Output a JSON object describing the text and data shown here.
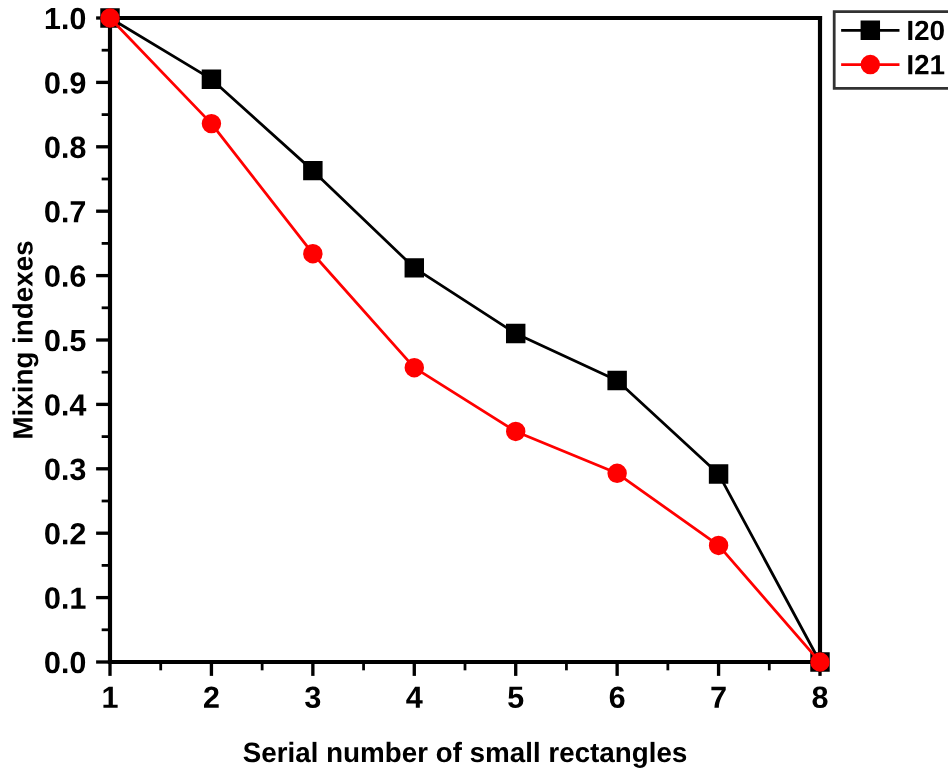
{
  "chart_data": {
    "type": "line",
    "xlabel": "Serial number of small rectangles",
    "ylabel": "Mixing indexes",
    "x": [
      1,
      2,
      3,
      4,
      5,
      6,
      7,
      8
    ],
    "series": [
      {
        "name": "I20",
        "color": "#000000",
        "marker": "square",
        "values": [
          1.0,
          0.905,
          0.763,
          0.612,
          0.51,
          0.437,
          0.292,
          0.0
        ]
      },
      {
        "name": "I21",
        "color": "#ff0000",
        "marker": "circle",
        "values": [
          1.0,
          0.836,
          0.634,
          0.457,
          0.358,
          0.293,
          0.181,
          0.0
        ]
      }
    ],
    "xlim": [
      1,
      8
    ],
    "xticks": [
      1,
      2,
      3,
      4,
      5,
      6,
      7,
      8
    ],
    "ylim": [
      0,
      1.0
    ],
    "yticks": [
      {
        "value": 0,
        "label": "0.0"
      },
      0.1,
      0.2,
      0.3,
      0.4,
      0.5,
      0.6,
      0.7,
      0.8,
      0.9,
      {
        "value": 1.0,
        "label": "1.0"
      }
    ],
    "grid": false,
    "legend": "top right",
    "line_style": "solid"
  }
}
